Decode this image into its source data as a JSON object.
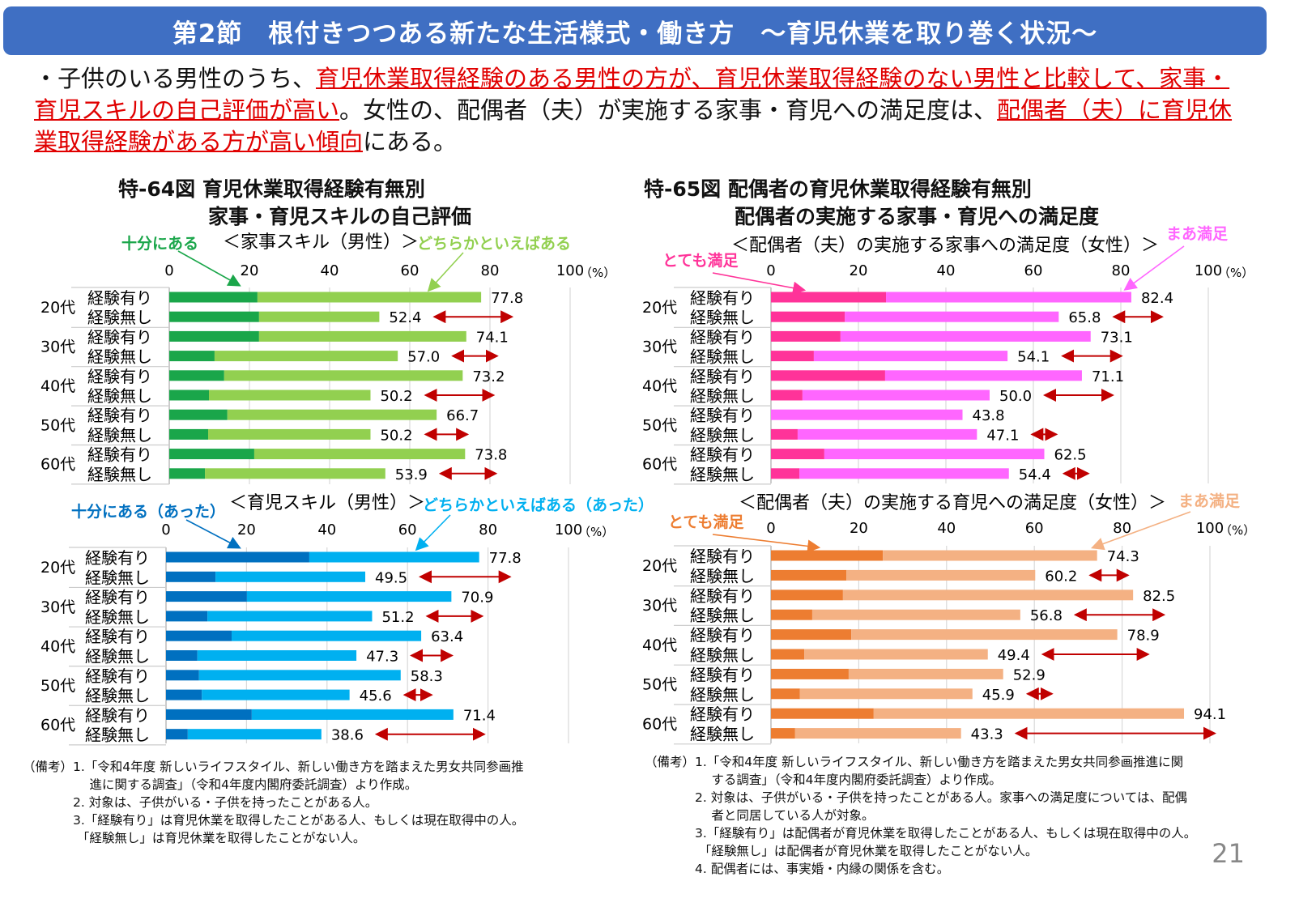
{
  "header": {
    "title": "第2節　根付きつつある新たな生活様式・働き方　～育児休業を取り巻く状況～"
  },
  "intro": {
    "t1": "・子供のいる男性のうち、",
    "h1": "育児休業取得経験のある男性の方が、育児休業取得経験のない男性と比較して、家事・育児スキルの自己評価が高い",
    "t2": "。女性の、配偶者（夫）が実施する家事・育児への満足度は、",
    "h2": "配偶者（夫）に育児休業取得経験がある方が高い傾向",
    "t3": "にある。"
  },
  "left": {
    "title1": "特-64図 育児休業取得経験有無別",
    "title2": "家事・育児スキルの自己評価"
  },
  "right": {
    "title1": "特-65図 配偶者の育児休業取得経験有無別",
    "title2": "配偶者の実施する家事・育児への満足度"
  },
  "chart_data": [
    {
      "type": "bar",
      "orientation": "horizontal",
      "stacked": true,
      "subtitle": "＜家事スキル（男性）＞",
      "unit": "（%）",
      "xlim": [
        0,
        100
      ],
      "ticks": [
        "0",
        "20",
        "40",
        "60",
        "80",
        "100"
      ],
      "ages": [
        "20代",
        "30代",
        "40代",
        "50代",
        "60代"
      ],
      "groups": [
        "経験有り",
        "経験無し"
      ],
      "series": [
        {
          "name": "十分にある",
          "color": "#1aa64a",
          "values": [
            22.0,
            22.4,
            22.4,
            11.3,
            13.7,
            9.9,
            14.5,
            9.7,
            21.2,
            8.9
          ]
        },
        {
          "name": "どちらかといえばある",
          "color": "#92d050"
        }
      ],
      "totals": [
        77.8,
        52.4,
        74.1,
        57.0,
        73.2,
        50.2,
        66.7,
        50.2,
        73.8,
        53.9
      ],
      "totals_labels": [
        "77.8",
        "52.4",
        "74.1",
        "57.0",
        "73.2",
        "50.2",
        "66.7",
        "50.2",
        "73.8",
        "53.9"
      ]
    },
    {
      "type": "bar",
      "orientation": "horizontal",
      "stacked": true,
      "subtitle": "＜育児スキル（男性）＞",
      "unit": "（%）",
      "xlim": [
        0,
        100
      ],
      "ticks": [
        "0",
        "20",
        "40",
        "60",
        "80",
        "100"
      ],
      "ages": [
        "20代",
        "30代",
        "40代",
        "50代",
        "60代"
      ],
      "groups": [
        "経験有り",
        "経験無し"
      ],
      "series": [
        {
          "name": "十分にある（あった）",
          "color": "#0070c0",
          "values": [
            35.6,
            12.3,
            20.1,
            10.3,
            16.3,
            7.8,
            8.2,
            8.9,
            21.3,
            5.4
          ]
        },
        {
          "name": "どちらかといえばある（あった）",
          "color": "#00b0f0"
        }
      ],
      "totals": [
        77.8,
        49.5,
        70.9,
        51.2,
        63.4,
        47.3,
        58.3,
        45.6,
        71.4,
        38.6
      ],
      "totals_labels": [
        "77.8",
        "49.5",
        "70.9",
        "51.2",
        "63.4",
        "47.3",
        "58.3",
        "45.6",
        "71.4",
        "38.6"
      ]
    },
    {
      "type": "bar",
      "orientation": "horizontal",
      "stacked": true,
      "subtitle": "＜配偶者（夫）の実施する家事への満足度（女性）＞",
      "unit": "（%）",
      "xlim": [
        0,
        100
      ],
      "ticks": [
        "0",
        "20",
        "40",
        "60",
        "80",
        "100"
      ],
      "ages": [
        "20代",
        "30代",
        "40代",
        "50代",
        "60代"
      ],
      "groups": [
        "経験有り",
        "経験無し"
      ],
      "series": [
        {
          "name": "とても満足",
          "color": "#ff3399",
          "values": [
            26.3,
            16.9,
            15.9,
            9.8,
            26.1,
            7.2,
            0,
            6.1,
            12.2,
            6.5
          ]
        },
        {
          "name": "まあ満足",
          "color": "#ff66ff"
        }
      ],
      "totals": [
        82.4,
        65.8,
        73.1,
        54.1,
        71.1,
        50.0,
        43.8,
        47.1,
        62.5,
        54.4
      ],
      "totals_labels": [
        "82.4",
        "65.8",
        "73.1",
        "54.1",
        "71.1",
        "50.0",
        "43.8",
        "47.1",
        "62.5",
        "54.4"
      ]
    },
    {
      "type": "bar",
      "orientation": "horizontal",
      "stacked": true,
      "subtitle": "＜配偶者（夫）の実施する育児への満足度（女性）＞",
      "unit": "（%）",
      "xlim": [
        0,
        100
      ],
      "ticks": [
        "0",
        "20",
        "40",
        "60",
        "80",
        "100"
      ],
      "ages": [
        "20代",
        "30代",
        "40代",
        "50代",
        "60代"
      ],
      "groups": [
        "経験有り",
        "経験無し"
      ],
      "series": [
        {
          "name": "とても満足",
          "color": "#ed7d31",
          "values": [
            25.5,
            17.2,
            16.4,
            9.4,
            18.3,
            7.6,
            17.7,
            6.6,
            23.4,
            5.5
          ]
        },
        {
          "name": "まあ満足",
          "color": "#f4b183"
        }
      ],
      "totals": [
        74.3,
        60.2,
        82.5,
        56.8,
        78.9,
        49.4,
        52.9,
        45.9,
        94.1,
        43.3
      ],
      "totals_labels": [
        "74.3",
        "60.2",
        "82.5",
        "56.8",
        "78.9",
        "49.4",
        "52.9",
        "45.9",
        "94.1",
        "43.3"
      ]
    }
  ],
  "arrow_color": "#c00000",
  "notes_left": "（備考）1.「令和4年度 新しいライフスタイル、新しい働き方を踏まえた男女共同参画推\n　　　　　 進に関する調査」（令和4年度内閣府委託調査）より作成。\n　　　　2. 対象は、子供がいる・子供を持ったことがある人。\n　　　　3.「経験有り」は育児休業を取得したことがある人、もしくは現在取得中の人。\n　　　　 「経験無し」は育児休業を取得したことがない人。",
  "notes_right": "（備考）1.「令和4年度 新しいライフスタイル、新しい働き方を踏まえた男女共同参画推進に関\n　　　　　 する調査」（令和4年度内閣府委託調査）より作成。\n　　　　2. 対象は、子供がいる・子供を持ったことがある人。家事への満足度については、配偶\n　　　　　 者と同居している人が対象。\n　　　　3.「経験有り」は配偶者が育児休業を取得したことがある人、もしくは現在取得中の人。\n　　　　 「経験無し」は配偶者が育児休業を取得したことがない人。\n　　　　4. 配偶者には、事実婚・内縁の関係を含む。",
  "page_number": "21"
}
